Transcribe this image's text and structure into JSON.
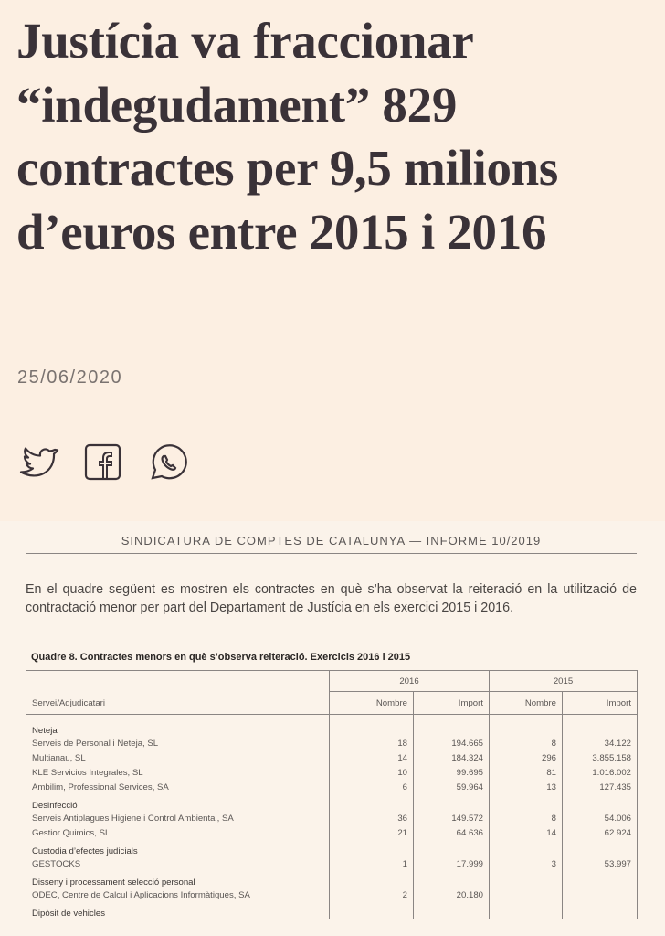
{
  "header": {
    "title": "Justícia va fraccionar “indegudament” 829 contractes per 9,5 milions d’euros entre 2015 i 2016",
    "date": "25/06/2020"
  },
  "document": {
    "header": "SINDICATURA DE COMPTES DE CATALUNYA — INFORME 10/2019",
    "paragraph": "En el quadre següent es mostren els contractes en què s’ha observat la reiteració en la utilització de contractació menor per part del Departament de Justícia en els exercici 2015 i 2016.",
    "caption": "Quadre 8.  Contractes menors en què s’observa reiteració. Exercicis 2016 i 2015",
    "table": {
      "years": [
        "2016",
        "2015"
      ],
      "columns": [
        "Servei/Adjudicatari",
        "Nombre",
        "Import",
        "Nombre",
        "Import"
      ],
      "groups": [
        {
          "name": "Neteja",
          "rows": [
            [
              "Serveis de Personal i Neteja, SL",
              "18",
              "194.665",
              "8",
              "34.122"
            ],
            [
              "Multianau, SL",
              "14",
              "184.324",
              "296",
              "3.855.158"
            ],
            [
              "KLE Servicios Integrales, SL",
              "10",
              "99.695",
              "81",
              "1.016.002"
            ],
            [
              "Ambilim, Professional Services, SA",
              "6",
              "59.964",
              "13",
              "127.435"
            ]
          ]
        },
        {
          "name": "Desinfecció",
          "rows": [
            [
              "Serveis Antiplagues Higiene i Control Ambiental, SA",
              "36",
              "149.572",
              "8",
              "54.006"
            ],
            [
              "Gestior Quimics, SL",
              "21",
              "64.636",
              "14",
              "62.924"
            ]
          ]
        },
        {
          "name": "Custodia d’efectes judicials",
          "rows": [
            [
              "GESTOCKS",
              "1",
              "17.999",
              "3",
              "53.997"
            ]
          ]
        },
        {
          "name": "Disseny i processament selecció personal",
          "rows": [
            [
              "ODEC, Centre de Calcul i Aplicacions Informàtiques, SA",
              "2",
              "20.180",
              null,
              null
            ]
          ]
        },
        {
          "name": "Dipòsit de vehicles",
          "rows": []
        }
      ]
    }
  }
}
